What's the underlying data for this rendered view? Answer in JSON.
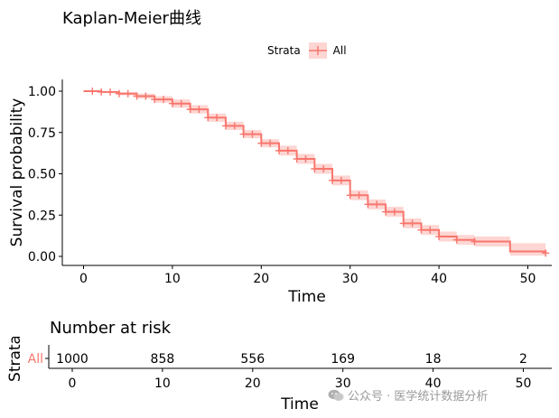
{
  "chart_data": [
    {
      "type": "line",
      "subtype": "kaplan-meier",
      "title": "Kaplan-Meier曲线",
      "xlabel": "Time",
      "ylabel": "Survival probability",
      "xlim": [
        0,
        52
      ],
      "ylim": [
        0,
        1
      ],
      "x_ticks": [
        0,
        10,
        20,
        30,
        40,
        50
      ],
      "y_ticks": [
        0.0,
        0.25,
        0.5,
        0.75,
        1.0
      ],
      "y_tick_labels": [
        "0.00",
        "0.25",
        "0.50",
        "0.75",
        "1.00"
      ],
      "legend": {
        "title": "Strata",
        "entries": [
          "All"
        ],
        "position": "top"
      },
      "colors": {
        "line": "#f8766d",
        "band": "#f8766d"
      },
      "series": [
        {
          "name": "All",
          "time": [
            0,
            2,
            4,
            6,
            8,
            10,
            12,
            14,
            16,
            18,
            20,
            22,
            24,
            26,
            28,
            30,
            32,
            34,
            36,
            38,
            40,
            42,
            44,
            46,
            48,
            52
          ],
          "surv": [
            1.0,
            0.995,
            0.985,
            0.97,
            0.95,
            0.925,
            0.89,
            0.84,
            0.79,
            0.74,
            0.685,
            0.64,
            0.59,
            0.53,
            0.46,
            0.37,
            0.315,
            0.27,
            0.2,
            0.16,
            0.12,
            0.1,
            0.09,
            0.09,
            0.03,
            0.02
          ],
          "lower": [
            1.0,
            0.99,
            0.975,
            0.955,
            0.93,
            0.9,
            0.865,
            0.815,
            0.765,
            0.715,
            0.66,
            0.61,
            0.56,
            0.5,
            0.43,
            0.34,
            0.285,
            0.24,
            0.17,
            0.13,
            0.09,
            0.07,
            0.06,
            0.06,
            0.005,
            0.005
          ],
          "upper": [
            1.0,
            1.0,
            0.995,
            0.985,
            0.97,
            0.95,
            0.915,
            0.865,
            0.815,
            0.765,
            0.71,
            0.67,
            0.62,
            0.56,
            0.49,
            0.4,
            0.345,
            0.3,
            0.23,
            0.19,
            0.15,
            0.13,
            0.12,
            0.12,
            0.08,
            0.07
          ],
          "censor_times": [
            1,
            2,
            3,
            4,
            5,
            6,
            7,
            8,
            9,
            10,
            11,
            12,
            13,
            14,
            15,
            16,
            17,
            18,
            19,
            20,
            21,
            22,
            23,
            24,
            25,
            26,
            27,
            28,
            29,
            30,
            31,
            32,
            33,
            34,
            35,
            36,
            37,
            38,
            39,
            40,
            42,
            44,
            52
          ]
        }
      ]
    },
    {
      "type": "table",
      "title": "Number at risk",
      "xlabel": "Time",
      "ylabel": "Strata",
      "xlim": [
        0,
        52
      ],
      "x_ticks": [
        0,
        10,
        20,
        30,
        40,
        50
      ],
      "rows": [
        {
          "strata": "All",
          "times": [
            0,
            10,
            20,
            30,
            40,
            50
          ],
          "values": [
            1000,
            858,
            556,
            169,
            18,
            2
          ]
        }
      ]
    }
  ],
  "watermark": "公众号 · 医学统计数据分析",
  "watermark_icon": "wechat-icon"
}
